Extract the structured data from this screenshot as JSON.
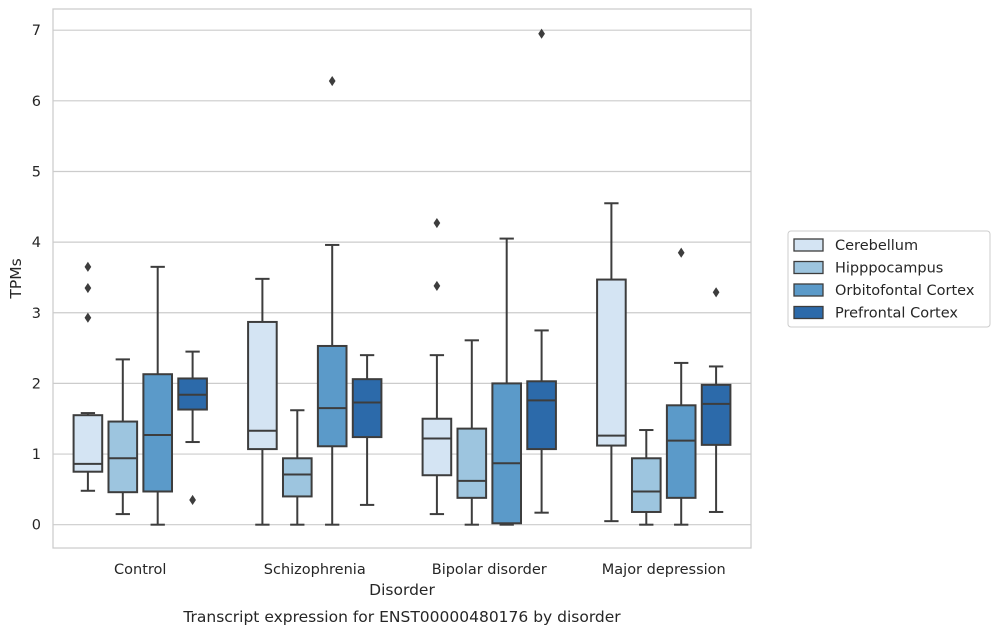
{
  "chart_data": {
    "type": "box",
    "title": "",
    "caption": "Transcript expression for ENST00000480176 by disorder",
    "xlabel": "Disorder",
    "ylabel": "TPMs",
    "ylim": [
      -0.33,
      7.3
    ],
    "yticks": [
      0,
      1,
      2,
      3,
      4,
      5,
      6,
      7
    ],
    "grid": "horizontal",
    "legend_position": "right",
    "categories": [
      "Control",
      "Schizophrenia",
      "Bipolar disorder",
      "Major depression"
    ],
    "series": [
      {
        "name": "Cerebellum",
        "color": "#d4e4f3",
        "boxes": [
          {
            "min": 0.48,
            "q1": 0.75,
            "median": 0.86,
            "q3": 1.55,
            "max": 1.58,
            "outliers": [
              2.93,
              3.35,
              3.65
            ]
          },
          {
            "min": 0.0,
            "q1": 1.07,
            "median": 1.33,
            "q3": 2.87,
            "max": 3.48,
            "outliers": []
          },
          {
            "min": 0.15,
            "q1": 0.7,
            "median": 1.22,
            "q3": 1.5,
            "max": 2.4,
            "outliers": [
              3.38,
              4.27
            ]
          },
          {
            "min": 0.05,
            "q1": 1.12,
            "median": 1.26,
            "q3": 3.47,
            "max": 4.55,
            "outliers": []
          }
        ]
      },
      {
        "name": "Hipppocampus",
        "color": "#9dc5df",
        "boxes": [
          {
            "min": 0.15,
            "q1": 0.46,
            "median": 0.94,
            "q3": 1.46,
            "max": 2.34,
            "outliers": []
          },
          {
            "min": 0.0,
            "q1": 0.4,
            "median": 0.71,
            "q3": 0.94,
            "max": 1.62,
            "outliers": []
          },
          {
            "min": 0.0,
            "q1": 0.38,
            "median": 0.62,
            "q3": 1.36,
            "max": 2.61,
            "outliers": []
          },
          {
            "min": 0.0,
            "q1": 0.18,
            "median": 0.47,
            "q3": 0.94,
            "max": 1.34,
            "outliers": []
          }
        ]
      },
      {
        "name": "Orbitofontal Cortex",
        "color": "#5b9ac9",
        "boxes": [
          {
            "min": 0.0,
            "q1": 0.47,
            "median": 1.27,
            "q3": 2.13,
            "max": 3.65,
            "outliers": []
          },
          {
            "min": 0.0,
            "q1": 1.11,
            "median": 1.65,
            "q3": 2.53,
            "max": 3.96,
            "outliers": [
              6.28
            ]
          },
          {
            "min": 0.0,
            "q1": 0.02,
            "median": 0.87,
            "q3": 2.0,
            "max": 4.05,
            "outliers": []
          },
          {
            "min": 0.0,
            "q1": 0.38,
            "median": 1.19,
            "q3": 1.69,
            "max": 2.29,
            "outliers": [
              3.85
            ]
          }
        ]
      },
      {
        "name": "Prefrontal Cortex",
        "color": "#2c6aaa",
        "boxes": [
          {
            "min": 1.17,
            "q1": 1.63,
            "median": 1.84,
            "q3": 2.07,
            "max": 2.45,
            "outliers": [
              0.35
            ]
          },
          {
            "min": 0.28,
            "q1": 1.24,
            "median": 1.73,
            "q3": 2.06,
            "max": 2.4,
            "outliers": []
          },
          {
            "min": 0.17,
            "q1": 1.07,
            "median": 1.76,
            "q3": 2.03,
            "max": 2.75,
            "outliers": [
              6.95
            ]
          },
          {
            "min": 0.18,
            "q1": 1.13,
            "median": 1.71,
            "q3": 1.98,
            "max": 2.24,
            "outliers": [
              3.29
            ]
          }
        ]
      }
    ]
  }
}
